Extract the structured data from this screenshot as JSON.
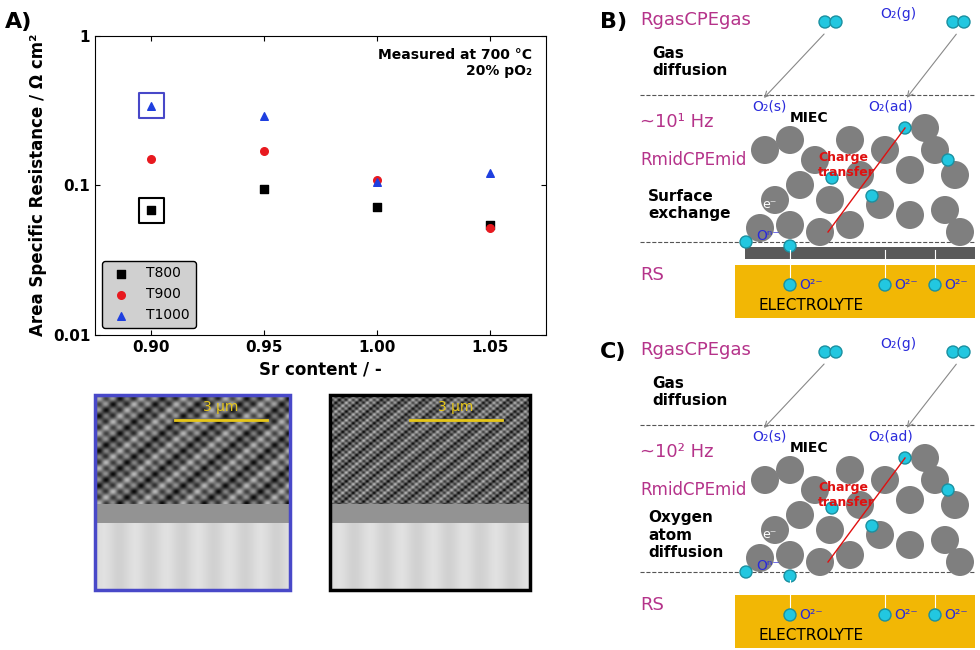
{
  "chart_data": {
    "type": "scatter",
    "panel_label": "A)",
    "x_label": "Sr content / -",
    "y_label": "Area Specific Resistance / Ω cm²",
    "annotation": "Measured at 700 °C\n20% pO₂",
    "log": "y",
    "x": [
      0.9,
      0.95,
      1.0,
      1.05
    ],
    "series": [
      {
        "name": "T800",
        "color": "#000000",
        "marker": "square",
        "values": [
          0.068,
          0.095,
          0.071,
          0.054
        ]
      },
      {
        "name": "T900",
        "color": "#e8191f",
        "marker": "circle",
        "values": [
          0.15,
          0.17,
          0.108,
          0.052
        ]
      },
      {
        "name": "T1000",
        "color": "#1f3fdf",
        "marker": "triangle",
        "values": [
          0.34,
          0.29,
          0.105,
          0.12
        ]
      }
    ],
    "xlim": [
      0.875,
      1.075
    ],
    "xticks": [
      {
        "value": 0.9,
        "label": "0.90"
      },
      0.95,
      {
        "value": 1.0,
        "label": "1.00"
      },
      1.05
    ],
    "ylim": [
      0.01,
      1
    ],
    "yticks": [
      0.01,
      0.1,
      1
    ],
    "legend": "lower left"
  },
  "images": [
    {
      "scale_bar": "3 µm",
      "frame_color": "#4848c8",
      "series": "T1000",
      "x": 0.9
    },
    {
      "scale_bar": "3 µm",
      "frame_color": "#000000",
      "series": "T800",
      "x": 0.9
    }
  ],
  "diagrams": [
    {
      "label": "B)",
      "gas_resistance": "RgasCPEgas",
      "gas_process": "Gas\ndiffusion",
      "frequency": "~10¹ Hz",
      "mid_resistance": "RmidCPEmid",
      "mid_process": "Surface\nexchange",
      "series_resistance": "RS",
      "mixed_conductor": "MIEC",
      "charge_transfer": "Charge\ntransfer",
      "electrolyte": "ELECTROLYTE",
      "species": {
        "gas": "O₂(g)",
        "surface": "O₂(s)",
        "adsorbed": "O₂(ad)",
        "partial": "Oⁿ⁻",
        "oxide": "O²⁻",
        "electron": "e⁻"
      }
    },
    {
      "label": "C)",
      "gas_resistance": "RgasCPEgas",
      "gas_process": "Gas\ndiffusion",
      "frequency": "~10² Hz",
      "mid_resistance": "RmidCPEmid",
      "mid_process": "Oxygen\natom\ndiffusion",
      "series_resistance": "RS",
      "mixed_conductor": "MIEC",
      "charge_transfer": "Charge\ntransfer",
      "electrolyte": "ELECTROLYTE",
      "species": {
        "gas": "O₂(g)",
        "surface": "O₂(s)",
        "adsorbed": "O₂(ad)",
        "partial": "Oⁿ⁻",
        "oxide": "O²⁻",
        "electron": "e⁻"
      }
    }
  ]
}
